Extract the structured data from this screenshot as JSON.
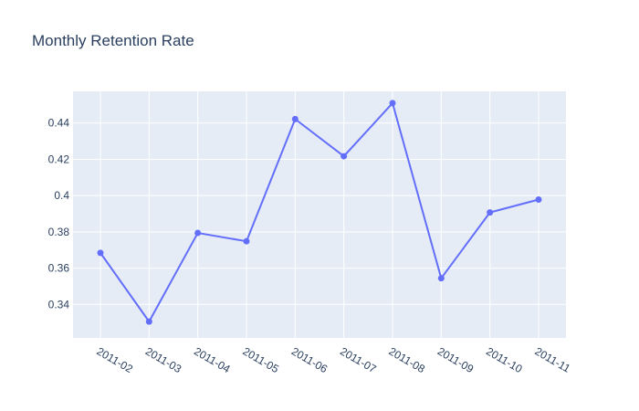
{
  "chart_data": {
    "type": "line",
    "title": "Monthly Retention Rate",
    "xlabel": "",
    "ylabel": "",
    "x": [
      "2011-02",
      "2011-03",
      "2011-04",
      "2011-05",
      "2011-06",
      "2011-07",
      "2011-08",
      "2011-09",
      "2011-10",
      "2011-11"
    ],
    "series": [
      {
        "values": [
          0.3684,
          0.3305,
          0.3794,
          0.3748,
          0.4422,
          0.4217,
          0.451,
          0.3544,
          0.3907,
          0.3978
        ]
      }
    ],
    "ylim": [
      0.3215,
      0.4575
    ],
    "yticks": [
      0.34,
      0.36,
      0.38,
      0.4,
      0.42,
      0.44
    ],
    "ytick_labels": [
      "0.34",
      "0.36",
      "0.38",
      "0.4",
      "0.42",
      "0.44"
    ],
    "grid": true,
    "legend": "none",
    "colors": {
      "plot_background": "#e5ecf6",
      "grid": "#ffffff",
      "line": "#636efa",
      "text": "#2a3f5f"
    }
  }
}
